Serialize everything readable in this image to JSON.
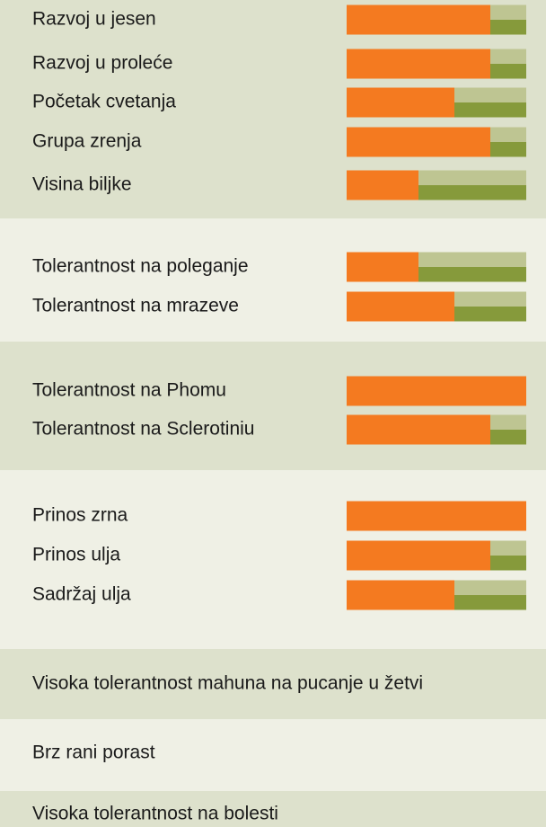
{
  "scale_max": 5,
  "colors": {
    "value": "#f47a20",
    "rest_top": "#bec592",
    "rest_bottom": "#869a3b"
  },
  "sections": [
    {
      "items": [
        {
          "label": "Razvoj u jesen",
          "value": 4
        },
        {
          "label": "Razvoj u proleće",
          "value": 4
        },
        {
          "label": "Početak cvetanja",
          "value": 3
        },
        {
          "label": "Grupa zrenja",
          "value": 4
        },
        {
          "label": "Visina biljke",
          "value": 2
        }
      ]
    },
    {
      "items": [
        {
          "label": "Tolerantnost na poleganje",
          "value": 2
        },
        {
          "label": "Tolerantnost na mrazeve",
          "value": 3
        }
      ]
    },
    {
      "items": [
        {
          "label": "Tolerantnost na Phomu",
          "value": 5
        },
        {
          "label": "Tolerantnost na Sclerotiniu",
          "value": 4
        }
      ]
    },
    {
      "items": [
        {
          "label": "Prinos zrna",
          "value": 5
        },
        {
          "label": "Prinos ulja",
          "value": 4
        },
        {
          "label": "Sadržaj ulja",
          "value": 3
        }
      ]
    },
    {
      "items": [
        {
          "label": "Visoka tolerantnost mahuna na pucanje u žetvi"
        }
      ]
    },
    {
      "items": [
        {
          "label": "Brz rani porast"
        }
      ]
    },
    {
      "items": [
        {
          "label": "Visoka tolerantnost na bolesti"
        }
      ]
    }
  ]
}
